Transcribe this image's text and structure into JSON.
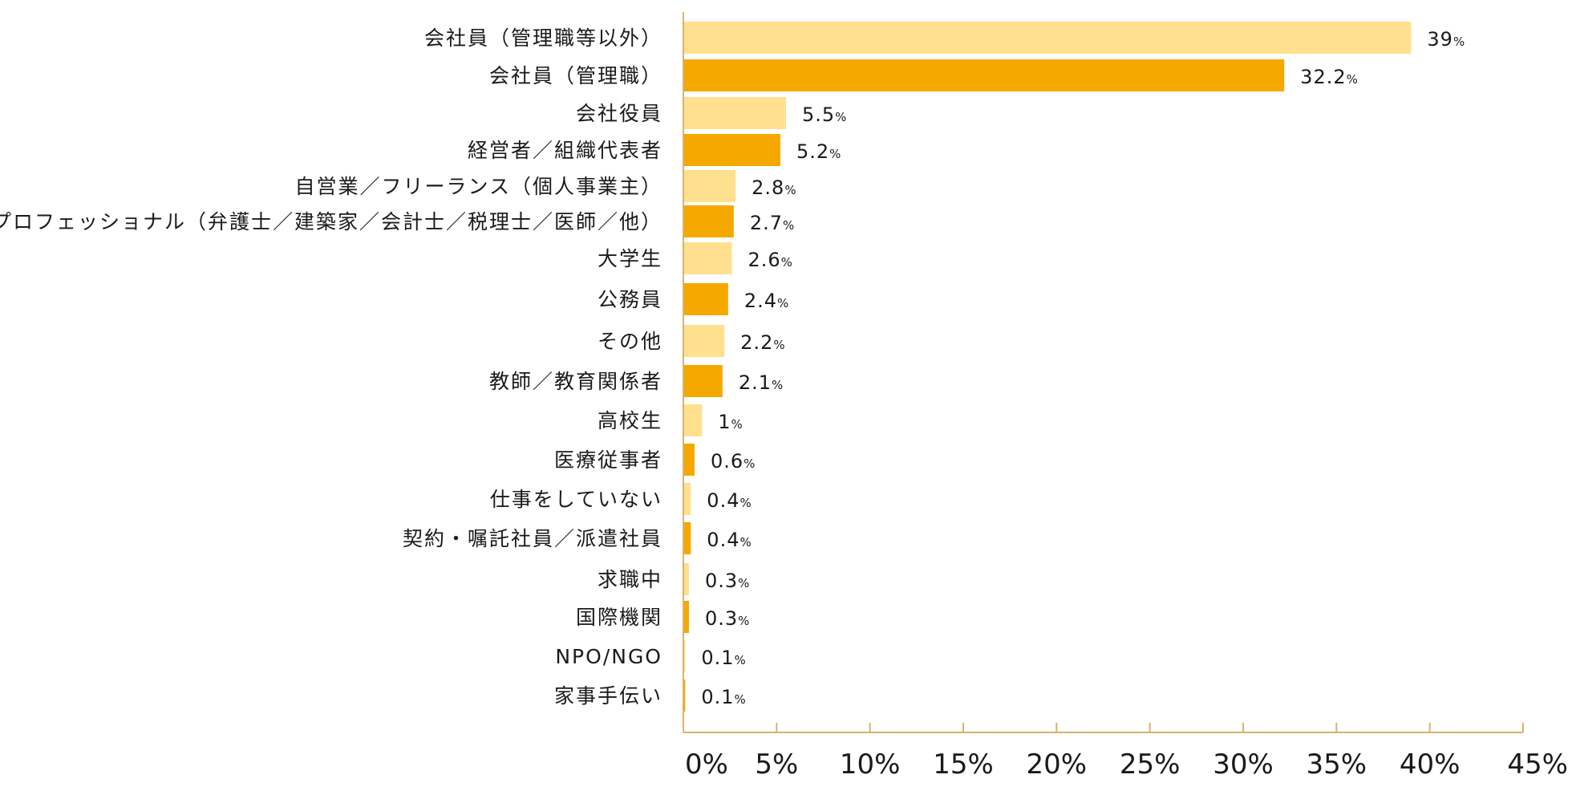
{
  "chart_data": {
    "type": "bar",
    "orientation": "horizontal",
    "categories": [
      "会社員（管理職等以外）",
      "会社員（管理職）",
      "会社役員",
      "経営者／組織代表者",
      "自営業／フリーランス（個人事業主）",
      "プロフェッショナル（弁護士／建築家／会計士／税理士／医師／他）",
      "大学生",
      "公務員",
      "その他",
      "教師／教育関係者",
      "高校生",
      "医療従事者",
      "仕事をしていない",
      "契約・嘱託社員／派遣社員",
      "求職中",
      "国際機関",
      "NPO/NGO",
      "家事手伝い"
    ],
    "values": [
      39,
      32.2,
      5.5,
      5.2,
      2.8,
      2.7,
      2.6,
      2.4,
      2.2,
      2.1,
      1,
      0.6,
      0.4,
      0.4,
      0.3,
      0.3,
      0.1,
      0.1
    ],
    "value_labels": [
      "39",
      "32.2",
      "5.5",
      "5.2",
      "2.8",
      "2.7",
      "2.6",
      "2.4",
      "2.2",
      "2.1",
      "1",
      "0.6",
      "0.4",
      "0.4",
      "0.3",
      "0.3",
      "0.1",
      "0.1"
    ],
    "value_suffix": "%",
    "xlim": [
      0,
      45
    ],
    "xticks": [
      0,
      5,
      10,
      15,
      20,
      25,
      30,
      35,
      40,
      45
    ],
    "xtick_labels": [
      "0%",
      "5%",
      "10%",
      "15%",
      "20%",
      "25%",
      "30%",
      "35%",
      "40%",
      "45%"
    ],
    "colors": {
      "light": "#FFE08F",
      "dark": "#F5A800",
      "axis": "#D9B36B"
    },
    "color_pattern": "alternating light/dark starting with light",
    "grid": false,
    "legend": "none",
    "title": "",
    "xlabel": "",
    "ylabel": ""
  }
}
